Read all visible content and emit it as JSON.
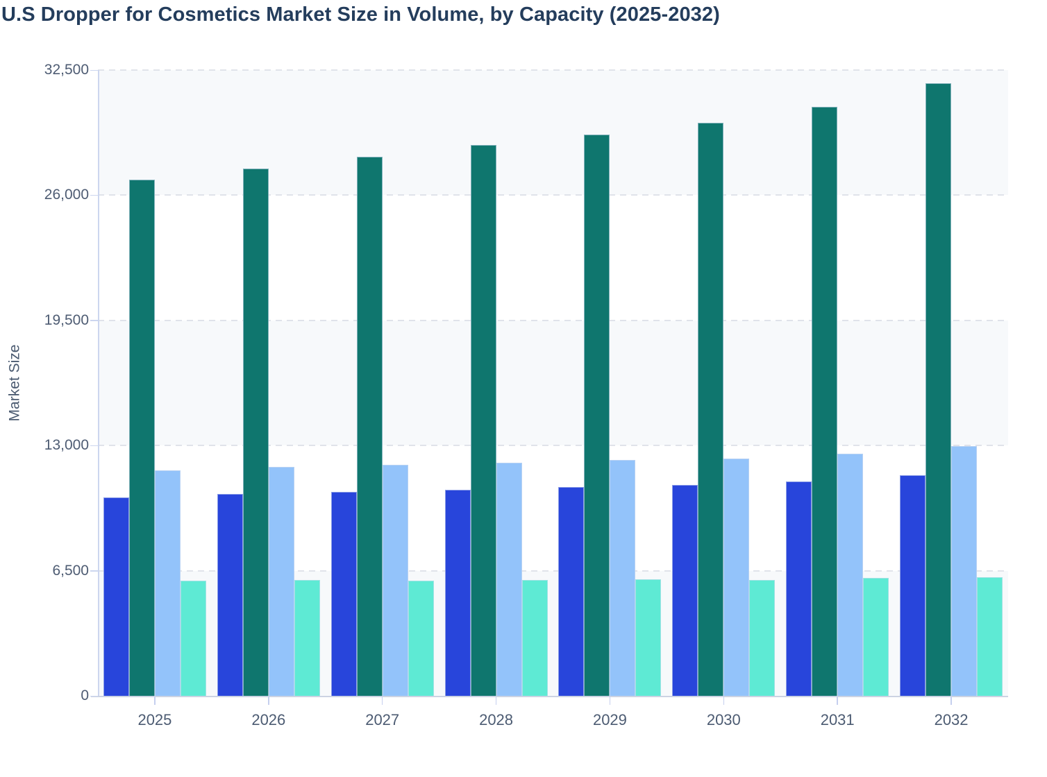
{
  "page": {
    "background_color": "#ffffff"
  },
  "chart_data": {
    "type": "bar",
    "title": "U.S Dropper for Cosmetics Market Size in Volume, by Capacity (2025-2032)",
    "xlabel": "",
    "ylabel": "Market Size",
    "categories": [
      "2025",
      "2026",
      "2027",
      "2028",
      "2029",
      "2030",
      "2031",
      "2032"
    ],
    "series": [
      {
        "name": "series-1-royal-blue",
        "color": "#2845db",
        "values": [
          10300,
          10470,
          10600,
          10700,
          10850,
          10940,
          11130,
          11460
        ]
      },
      {
        "name": "series-2-dark-teal",
        "color": "#0f766e",
        "values": [
          26800,
          27400,
          28000,
          28600,
          29150,
          29750,
          30600,
          31800
        ]
      },
      {
        "name": "series-3-light-blue",
        "color": "#93c3fa",
        "values": [
          11720,
          11880,
          12000,
          12120,
          12240,
          12330,
          12560,
          12960
        ]
      },
      {
        "name": "series-4-mint",
        "color": "#5eead4",
        "values": [
          5980,
          6020,
          5990,
          6020,
          6040,
          6000,
          6110,
          6170
        ]
      }
    ],
    "ylim": [
      0,
      32500
    ],
    "yticks": [
      0,
      6500,
      13000,
      19500,
      26000,
      32500
    ],
    "ytick_labels": [
      "0",
      "6,500",
      "13,000",
      "19,500",
      "26,000",
      "32,500"
    ],
    "grid": "horizontal dashed gridlines at each y tick",
    "legend": "none",
    "plot_style": {
      "band_fill_color": "#f7f9fb",
      "band_pattern": "alternating horizontal bands between gridlines, gray topmost",
      "gridline_color": "#e0e3ea",
      "axis_line_color": "#ccd6ef",
      "tick_label_color": "#4e5c73",
      "title_color": "#243d5c"
    }
  }
}
